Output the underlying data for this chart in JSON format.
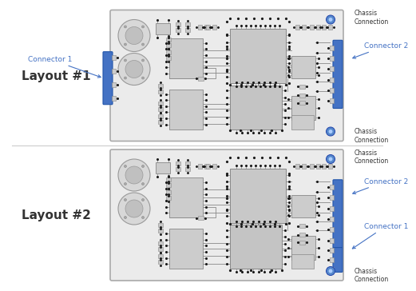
{
  "bg_color": "#ffffff",
  "board_bg": "#e8e8e8",
  "chip_light": "#d0d0d0",
  "chip_mid": "#c0c0c0",
  "chip_dark": "#b0b0b0",
  "connector_color": "#4472c4",
  "text_color": "#333333",
  "label_color": "#4472c4",
  "border_color": "#999999",
  "trace_color": "#888888",
  "dot_color": "#1a1a1a",
  "layout1_title": "Layout #1",
  "layout2_title": "Layout #2",
  "connector1_label": "Connector 1",
  "connector2_label": "Connector 2",
  "chassis_label": "Chassis\nConnection",
  "title_fontsize": 11,
  "label_fontsize": 6.5,
  "chassis_fontsize": 5.5
}
